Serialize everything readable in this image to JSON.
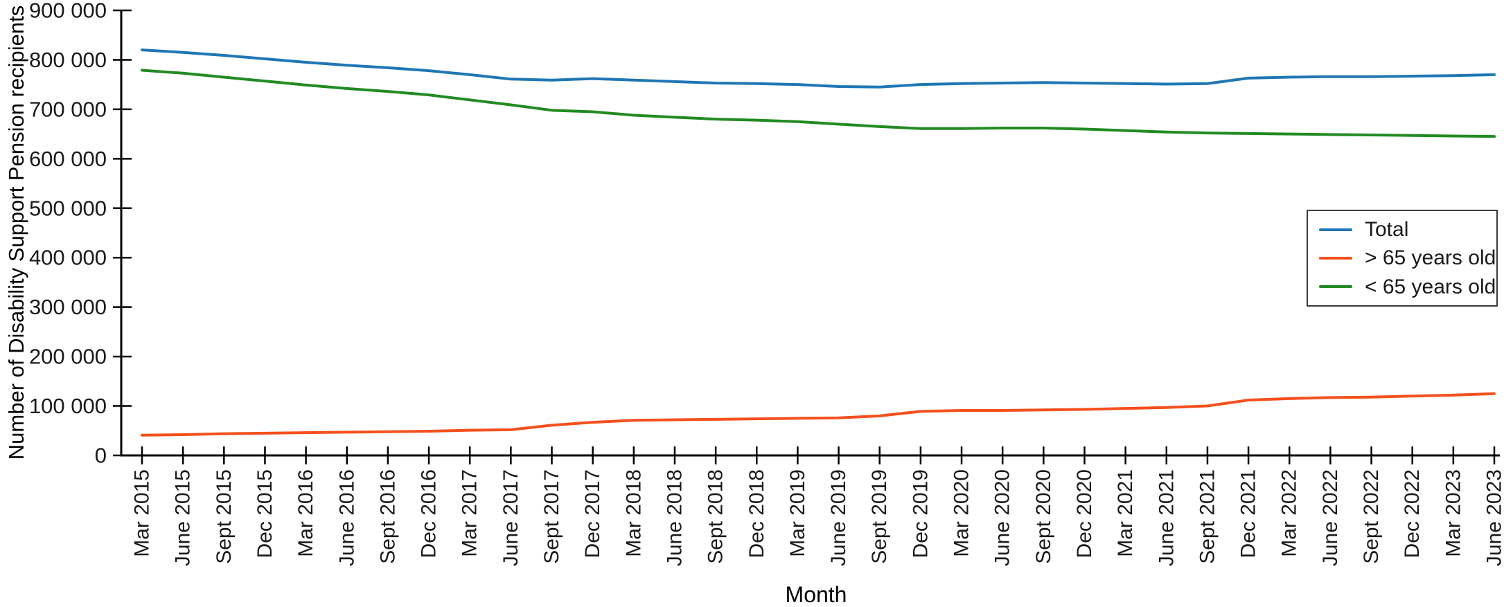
{
  "figure": {
    "kind": "line-chart",
    "background": "#ffffff"
  },
  "chart_data": {
    "type": "line",
    "title": "",
    "xlabel": "Month",
    "ylabel": "Number of Disability Support Pension recipients",
    "categories": [
      "Mar 2015",
      "June 2015",
      "Sept 2015",
      "Dec 2015",
      "Mar 2016",
      "June 2016",
      "Sept 2016",
      "Dec 2016",
      "Mar 2017",
      "June 2017",
      "Sept 2017",
      "Dec 2017",
      "Mar 2018",
      "June 2018",
      "Sept 2018",
      "Dec 2018",
      "Mar 2019",
      "June 2019",
      "Sept 2019",
      "Dec 2019",
      "Mar 2020",
      "June 2020",
      "Sept 2020",
      "Dec 2020",
      "Mar 2021",
      "June 2021",
      "Sept 2021",
      "Dec 2021",
      "Mar 2022",
      "June 2022",
      "Sept 2022",
      "Dec 2022",
      "Mar 2023",
      "June 2023"
    ],
    "series": [
      {
        "name": "Total",
        "color": "#1f77b4",
        "values": [
          820000,
          815000,
          809000,
          802000,
          795000,
          789000,
          784000,
          778000,
          770000,
          761000,
          759000,
          762000,
          759000,
          756000,
          753000,
          752000,
          750000,
          746000,
          745000,
          750000,
          752000,
          753000,
          754000,
          753000,
          752000,
          751000,
          752000,
          763000,
          765000,
          766000,
          766000,
          767000,
          768000,
          770000
        ]
      },
      {
        "name": "> 65 years old",
        "color": "#f4501e",
        "values": [
          41000,
          42000,
          44000,
          45000,
          46000,
          47000,
          48000,
          49000,
          51000,
          52000,
          61000,
          67000,
          71000,
          72000,
          73000,
          74000,
          75000,
          76000,
          80000,
          89000,
          91000,
          91000,
          92000,
          93000,
          95000,
          97000,
          100000,
          112000,
          115000,
          117000,
          118000,
          120000,
          122000,
          125000
        ]
      },
      {
        "name": "< 65 years old",
        "color": "#228b22",
        "values": [
          779000,
          773000,
          765000,
          757000,
          749000,
          742000,
          736000,
          729000,
          719000,
          709000,
          698000,
          695000,
          688000,
          684000,
          680000,
          678000,
          675000,
          670000,
          665000,
          661000,
          661000,
          662000,
          662000,
          660000,
          657000,
          654000,
          652000,
          651000,
          650000,
          649000,
          648000,
          647000,
          646000,
          645000
        ]
      }
    ],
    "ylim": [
      0,
      900000
    ],
    "ytick_values": [
      0,
      100000,
      200000,
      300000,
      400000,
      500000,
      600000,
      700000,
      800000,
      900000
    ],
    "ytick_labels": [
      "0",
      "100 000",
      "200 000",
      "300 000",
      "400 000",
      "500 000",
      "600 000",
      "700 000",
      "800 000",
      "900 000"
    ],
    "grid": false,
    "legend_position": "right",
    "axis_color": "#000000"
  }
}
